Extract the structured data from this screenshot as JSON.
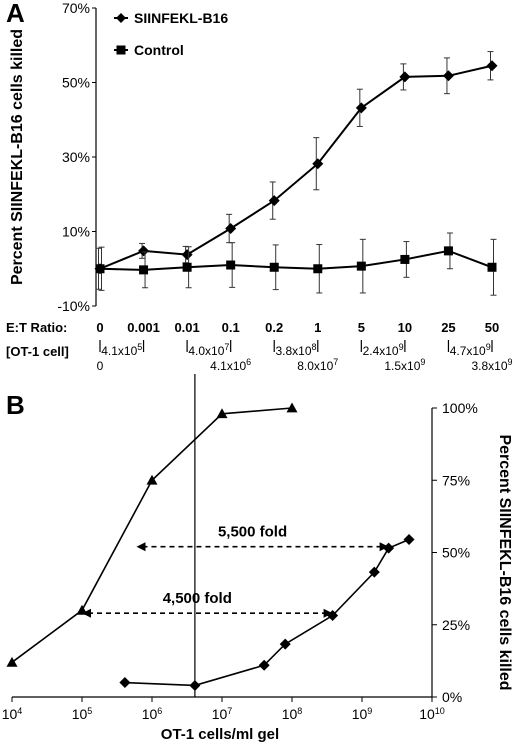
{
  "chart_data": [
    {
      "panel": "A",
      "type": "line",
      "ylabel": "Percent SIINFEKL-B16 cells killed",
      "ylim": [
        -10,
        70
      ],
      "yticks": [
        "-10%",
        "10%",
        "30%",
        "50%",
        "70%"
      ],
      "categories": [
        "0",
        "0.001",
        "0.01",
        "0.1",
        "0.2",
        "1",
        "5",
        "10",
        "25",
        "50"
      ],
      "et_label": "E:T Ratio:",
      "ot1_label": "[OT-1 cell]",
      "ot1_top": [
        "4.1x10^5",
        "4.0x10^7",
        "3.8x10^8",
        "2.4x10^9",
        "4.7x10^9"
      ],
      "ot1_bottom": [
        "0",
        "4.1x10^6",
        "8.0x10^7",
        "1.5x10^9",
        "3.8x10^9"
      ],
      "legend_position": "top-left",
      "series": [
        {
          "name": "SIINFEKL-B16",
          "marker": "diamond",
          "values": [
            0,
            4.8,
            3.8,
            10.8,
            18.3,
            28.2,
            43.2,
            51.5,
            51.8,
            54.5
          ],
          "errors": [
            5.5,
            2,
            2.2,
            3.8,
            5,
            7,
            5,
            3.5,
            4.8,
            3.8
          ]
        },
        {
          "name": "Control",
          "marker": "square",
          "values": [
            0,
            -0.3,
            0.4,
            1.0,
            0.4,
            0.0,
            0.7,
            2.5,
            4.8,
            0.4
          ],
          "errors": [
            5.8,
            4.8,
            5.5,
            6,
            6,
            6.5,
            7.2,
            4.8,
            4.8,
            7.5
          ]
        }
      ]
    },
    {
      "panel": "B",
      "type": "line",
      "xlabel": "OT-1 cells/ml gel",
      "ylabel": "Percent SIINFEKL-B16 cells killed",
      "xscale": "log",
      "xlim": [
        10000,
        10000000000
      ],
      "ylim": [
        0,
        100
      ],
      "xticks": [
        "10^4",
        "10^5",
        "10^6",
        "10^7",
        "10^8",
        "10^9",
        "10^10"
      ],
      "yticks": [
        "0%",
        "25%",
        "50%",
        "75%",
        "100%"
      ],
      "reference_line_x": 4100000,
      "series": [
        {
          "marker": "triangle",
          "x": [
            10000,
            100000,
            1000000,
            10000000,
            100000000
          ],
          "y": [
            12,
            30,
            75,
            98,
            100
          ]
        },
        {
          "marker": "diamond",
          "x": [
            410000,
            4100000,
            40000000,
            80000000,
            380000000,
            1500000000,
            2400000000,
            4700000000
          ],
          "y": [
            5,
            4,
            11,
            18.3,
            28.2,
            43.2,
            51.5,
            54.5
          ]
        }
      ],
      "annotations": [
        {
          "text": "5,500 fold",
          "x_from": 600000,
          "x_to": 2400000000,
          "y": 52
        },
        {
          "text": "4,500 fold",
          "x_from": 100000,
          "x_to": 380000000,
          "y": 29
        }
      ]
    }
  ]
}
